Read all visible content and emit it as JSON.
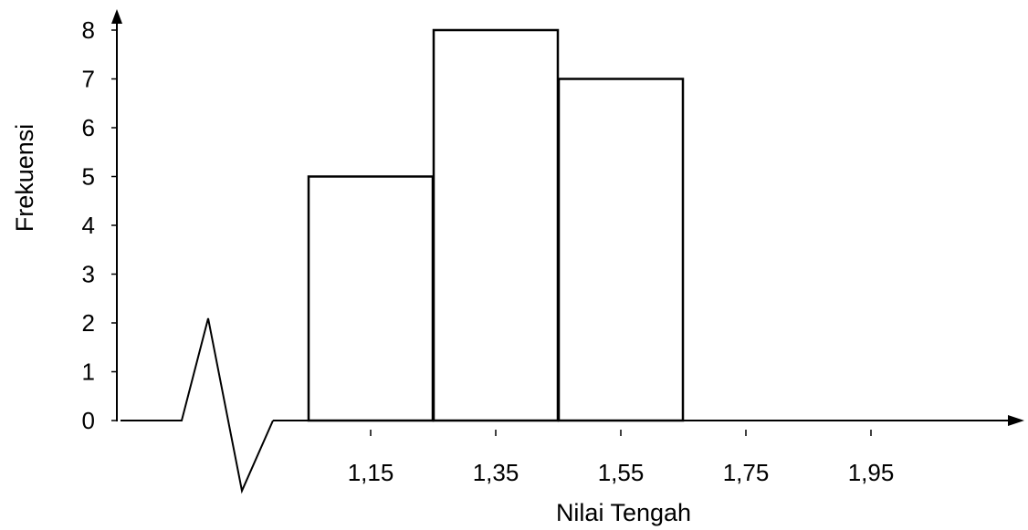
{
  "chart_data": {
    "type": "bar",
    "categories": [
      "1,15",
      "1,35",
      "1,55",
      "1,75",
      "1,95"
    ],
    "values": [
      5,
      8,
      7,
      0,
      0
    ],
    "xlabel": "Nilai Tengah",
    "ylabel": "Frekuensi",
    "ylim": [
      0,
      8
    ],
    "yticks": [
      "0",
      "1",
      "2",
      "3",
      "4",
      "5",
      "6",
      "7",
      "8"
    ],
    "axis_break": true,
    "grid": false,
    "legend": "none"
  },
  "colors": {
    "bar_fill": "#ffffff",
    "bar_stroke": "#000000",
    "axis": "#000000"
  }
}
